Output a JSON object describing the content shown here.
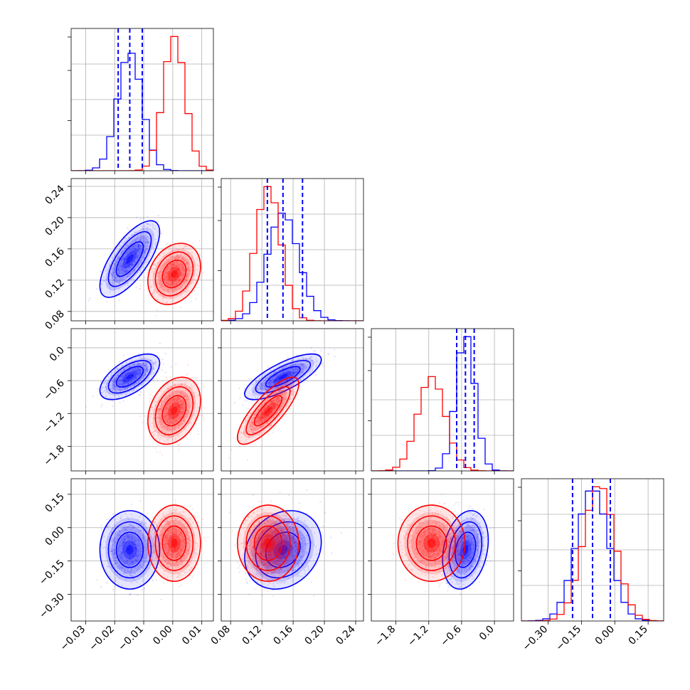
{
  "chart_data": {
    "type": "corner",
    "grid": true,
    "parameters": [
      {
        "id": "p1",
        "range": [
          -0.035,
          0.014
        ],
        "ticks": [
          "−0.03",
          "−0.02",
          "−0.01",
          "0.00",
          "0.01"
        ],
        "tick_values": [
          -0.03,
          -0.02,
          -0.01,
          0.0,
          0.01
        ]
      },
      {
        "id": "p2",
        "range": [
          0.068,
          0.25
        ],
        "ticks": [
          "0.08",
          "0.12",
          "0.16",
          "0.20",
          "0.24"
        ],
        "tick_values": [
          0.08,
          0.12,
          0.16,
          0.2,
          0.24
        ]
      },
      {
        "id": "p3",
        "range": [
          -2.25,
          0.35
        ],
        "ticks": [
          "−1.8",
          "−1.2",
          "−0.6",
          "0.0"
        ],
        "tick_values": [
          -1.8,
          -1.2,
          -0.6,
          0.0
        ]
      },
      {
        "id": "p4",
        "range": [
          -0.42,
          0.22
        ],
        "ticks": [
          "−0.30",
          "−0.15",
          "0.00",
          "0.15"
        ],
        "tick_values": [
          -0.3,
          -0.15,
          0.0,
          0.15
        ]
      }
    ],
    "series": [
      {
        "color": "#0000ff",
        "mean": [
          -0.0148,
          0.147,
          -0.53,
          -0.1
        ],
        "std": [
          0.0042,
          0.02,
          0.17,
          0.072
        ],
        "corr": [
          [
            1,
            0.7,
            0.6,
            0
          ],
          [
            0.7,
            1,
            0.75,
            0.2
          ],
          [
            0.6,
            0.75,
            1,
            0.25
          ],
          [
            0,
            0.2,
            0.25,
            1
          ]
        ]
      },
      {
        "color": "#ff0000",
        "mean": [
          0.0005,
          0.128,
          -1.15,
          -0.07
        ],
        "std": [
          0.0037,
          0.016,
          0.25,
          0.07
        ],
        "corr": [
          [
            1,
            0.25,
            0.3,
            0
          ],
          [
            0.25,
            1,
            0.8,
            0
          ],
          [
            0.3,
            0.8,
            1,
            0
          ],
          [
            0,
            0,
            0,
            1
          ]
        ]
      }
    ],
    "quantile_lines": {
      "color": "#0000ff",
      "p1": [
        -0.0188,
        -0.0148,
        -0.0105
      ],
      "p2": [
        0.127,
        0.147,
        0.172
      ],
      "p3": [
        -0.69,
        -0.53,
        -0.37
      ],
      "p4": [
        -0.19,
        -0.1,
        -0.02
      ]
    }
  }
}
